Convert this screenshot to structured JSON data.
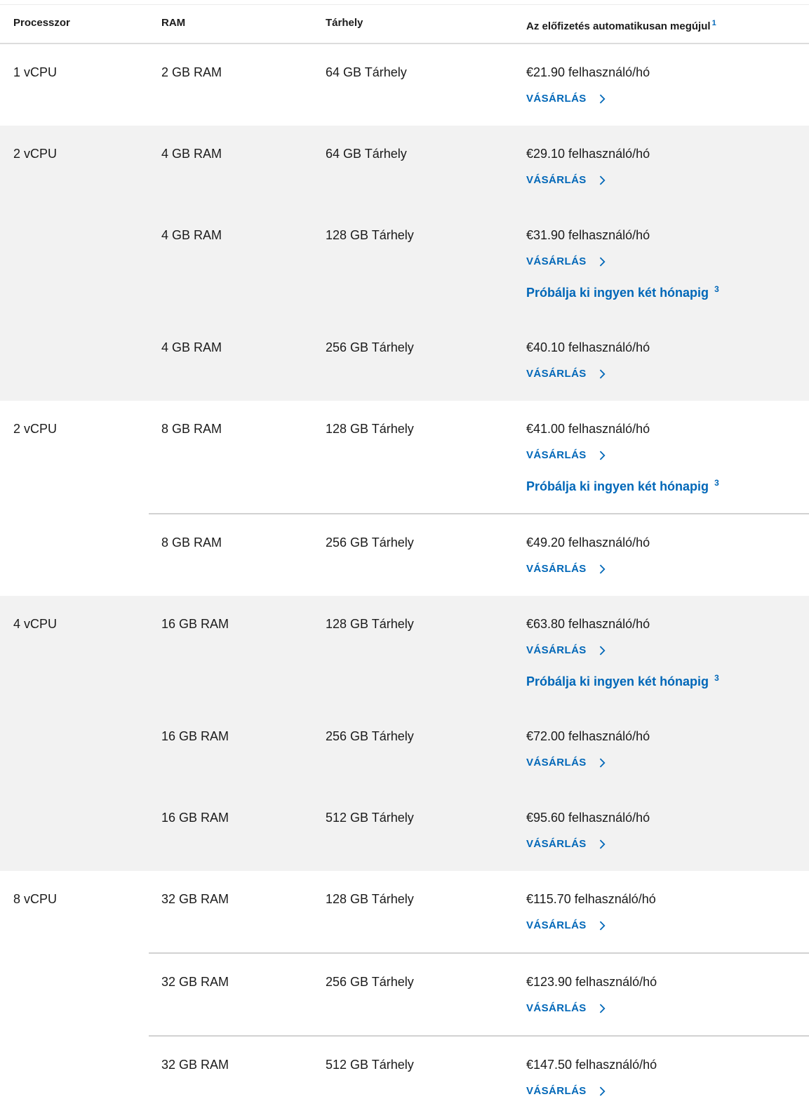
{
  "colors": {
    "link": "#0067b8",
    "band": "#f2f2f2",
    "divider": "#d2d2d2",
    "header_divider": "#dcdcdc",
    "text": "#1b1b1b"
  },
  "header": {
    "processor": "Processzor",
    "ram": "RAM",
    "storage": "Tárhely",
    "renewal": "Az előfizetés automatikusan megújul",
    "renewal_superscript": "1"
  },
  "labels": {
    "buy": "VÁSÁRLÁS",
    "trial": "Próbálja ki ingyen két hónapig",
    "trial_superscript": "3",
    "chevron_icon": "chevron-right"
  },
  "groups": [
    {
      "shaded": false,
      "processor": "1 vCPU",
      "rows": [
        {
          "ram": "2 GB RAM",
          "storage": "64 GB Tárhely",
          "price": "€21.90 felhasználó/hó",
          "trial": false
        }
      ]
    },
    {
      "shaded": true,
      "processor": "2 vCPU",
      "rows": [
        {
          "ram": "4 GB RAM",
          "storage": "64 GB Tárhely",
          "price": "€29.10 felhasználó/hó",
          "trial": false
        },
        {
          "ram": "4 GB RAM",
          "storage": "128 GB Tárhely",
          "price": "€31.90 felhasználó/hó",
          "trial": true
        },
        {
          "ram": "4 GB RAM",
          "storage": "256 GB Tárhely",
          "price": "€40.10 felhasználó/hó",
          "trial": false
        }
      ]
    },
    {
      "shaded": false,
      "processor": "2 vCPU",
      "rows": [
        {
          "ram": "8 GB RAM",
          "storage": "128 GB Tárhely",
          "price": "€41.00 felhasználó/hó",
          "trial": true
        },
        {
          "ram": "8 GB RAM",
          "storage": "256 GB Tárhely",
          "price": "€49.20 felhasználó/hó",
          "trial": false
        }
      ]
    },
    {
      "shaded": true,
      "processor": "4 vCPU",
      "rows": [
        {
          "ram": "16 GB RAM",
          "storage": "128 GB Tárhely",
          "price": "€63.80 felhasználó/hó",
          "trial": true
        },
        {
          "ram": "16 GB RAM",
          "storage": "256 GB Tárhely",
          "price": "€72.00 felhasználó/hó",
          "trial": false
        },
        {
          "ram": "16 GB RAM",
          "storage": "512 GB Tárhely",
          "price": "€95.60 felhasználó/hó",
          "trial": false
        }
      ]
    },
    {
      "shaded": false,
      "processor": "8 vCPU",
      "rows": [
        {
          "ram": "32 GB RAM",
          "storage": "128 GB Tárhely",
          "price": "€115.70 felhasználó/hó",
          "trial": false
        },
        {
          "ram": "32 GB RAM",
          "storage": "256 GB Tárhely",
          "price": "€123.90 felhasználó/hó",
          "trial": false
        },
        {
          "ram": "32 GB RAM",
          "storage": "512 GB Tárhely",
          "price": "€147.50 felhasználó/hó",
          "trial": false
        }
      ]
    }
  ]
}
